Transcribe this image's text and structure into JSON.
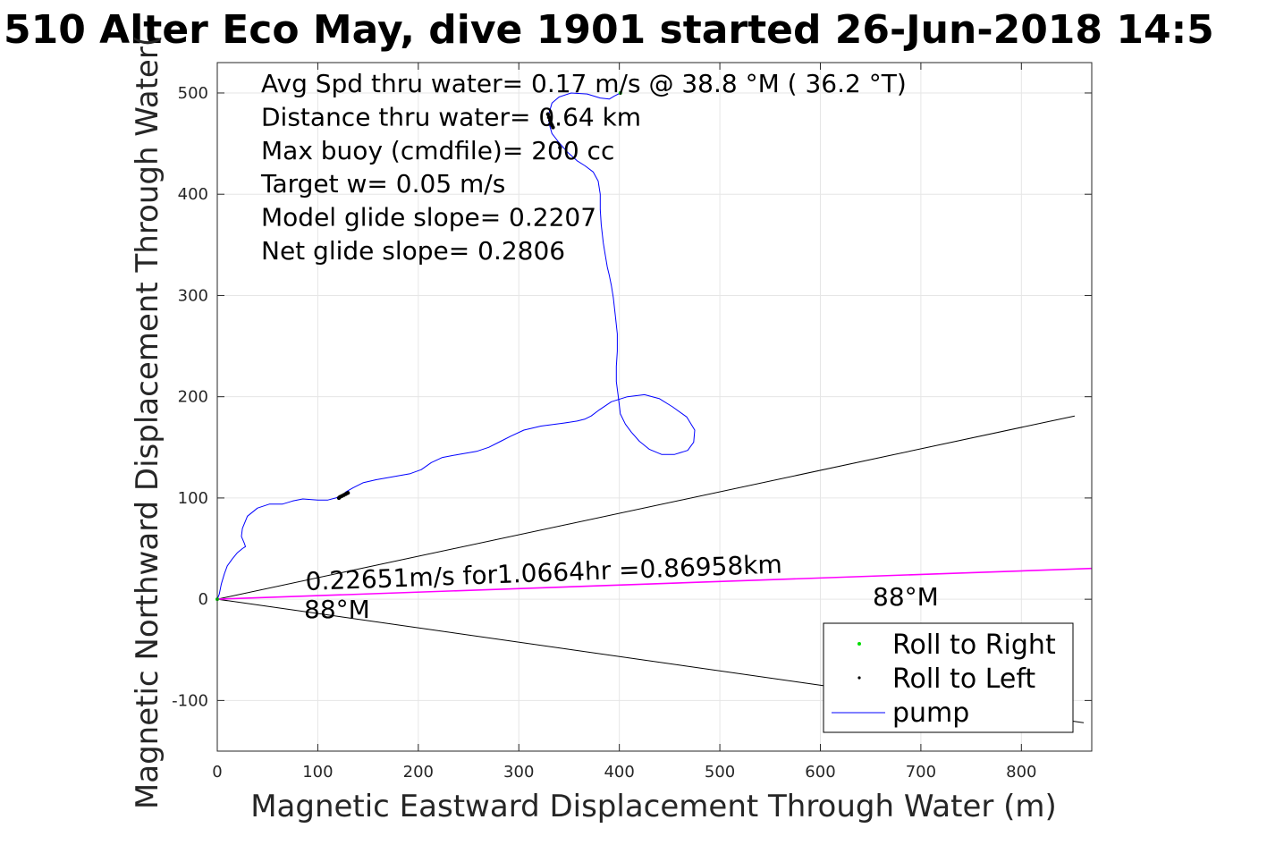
{
  "chart_data": {
    "type": "line",
    "title": "510 Alter Eco May, dive 1901 started 26-Jun-2018 14:5",
    "xlabel": "Magnetic Eastward Displacement Through Water (m)",
    "ylabel": "Magnetic Northward Displacement Through Water(",
    "xlim": [
      0,
      870
    ],
    "ylim": [
      -150,
      530
    ],
    "xticks": [
      0,
      100,
      200,
      300,
      400,
      500,
      600,
      700,
      800
    ],
    "yticks": [
      -100,
      0,
      100,
      200,
      300,
      400,
      500
    ],
    "xtick_labels": [
      "0",
      "100",
      "200",
      "300",
      "400",
      "500",
      "600",
      "700",
      "800"
    ],
    "ytick_labels": [
      "-100",
      "0",
      "100",
      "200",
      "300",
      "400",
      "500"
    ],
    "grid": true,
    "legend_position": "bottom-right",
    "info_lines": [
      "Avg Spd thru water=  0.17 m/s @  38.8 °M ( 36.2 °T)",
      "Distance thru water=  0.64 km",
      "Max buoy (cmdfile)= 200 cc",
      "Target w= 0.05 m/s",
      "Model glide slope= 0.2207",
      "Net glide slope= 0.2806"
    ],
    "current_label": "0.22651m/s for1.0664hr =0.86958km",
    "heading_label_left": "88°M",
    "heading_label_right": "88°M",
    "series": [
      {
        "name": "pump",
        "color": "#0000ff",
        "x": [
          0,
          2,
          4,
          7,
          10,
          15,
          20,
          25,
          28,
          27,
          24,
          25,
          30,
          40,
          52,
          65,
          75,
          85,
          100,
          110,
          118,
          123,
          128,
          135,
          145,
          158,
          175,
          192,
          203,
          213,
          224,
          240,
          258,
          270,
          282,
          292,
          305,
          322,
          345,
          358,
          366,
          372,
          380,
          392,
          408,
          425,
          440,
          453,
          467,
          475,
          474,
          468,
          455,
          442,
          430,
          420,
          412,
          406,
          401,
          399,
          397,
          397,
          398,
          398,
          396,
          394,
          392,
          390,
          388,
          386,
          384,
          382,
          381,
          381,
          379,
          374,
          366,
          358,
          349,
          340,
          333,
          330,
          330,
          333,
          340,
          352,
          368,
          381,
          390,
          395,
          401
        ],
        "y": [
          0,
          5,
          15,
          25,
          33,
          40,
          46,
          50,
          52,
          55,
          62,
          70,
          82,
          90,
          94,
          94,
          97,
          99,
          98,
          98,
          100,
          102,
          106,
          110,
          115,
          118,
          121,
          124,
          128,
          135,
          140,
          143,
          146,
          150,
          156,
          161,
          167,
          171,
          174,
          176,
          178,
          181,
          187,
          195,
          200,
          202,
          198,
          190,
          180,
          167,
          155,
          147,
          143,
          143,
          148,
          156,
          165,
          173,
          183,
          200,
          215,
          230,
          245,
          262,
          280,
          298,
          310,
          320,
          328,
          340,
          352,
          370,
          385,
          400,
          413,
          422,
          428,
          433,
          441,
          451,
          460,
          470,
          480,
          490,
          496,
          500,
          499,
          495,
          494,
          497,
          500
        ]
      },
      {
        "name": "current",
        "color": "#ff00ff",
        "x": [
          0,
          870
        ],
        "y": [
          0,
          30.4
        ]
      },
      {
        "name": "",
        "color": "#000000",
        "x": [
          0,
          853
        ],
        "y": [
          0,
          181
        ]
      },
      {
        "name": "",
        "color": "#000000",
        "x": [
          0,
          862
        ],
        "y": [
          0,
          -122
        ]
      }
    ],
    "roll_to_right": {
      "name": "Roll to Right",
      "color": "#00dd00",
      "x": [
        0,
        401
      ],
      "y": [
        0,
        500
      ]
    },
    "roll_to_left": {
      "name": "Roll to Left",
      "color": "#000000",
      "x": [
        121,
        122,
        124,
        126,
        128,
        130,
        329,
        330,
        331,
        332,
        333,
        334,
        341
      ],
      "y": [
        100,
        101,
        102,
        103,
        104,
        105,
        479,
        476,
        473,
        470,
        468,
        466,
        446
      ]
    }
  }
}
